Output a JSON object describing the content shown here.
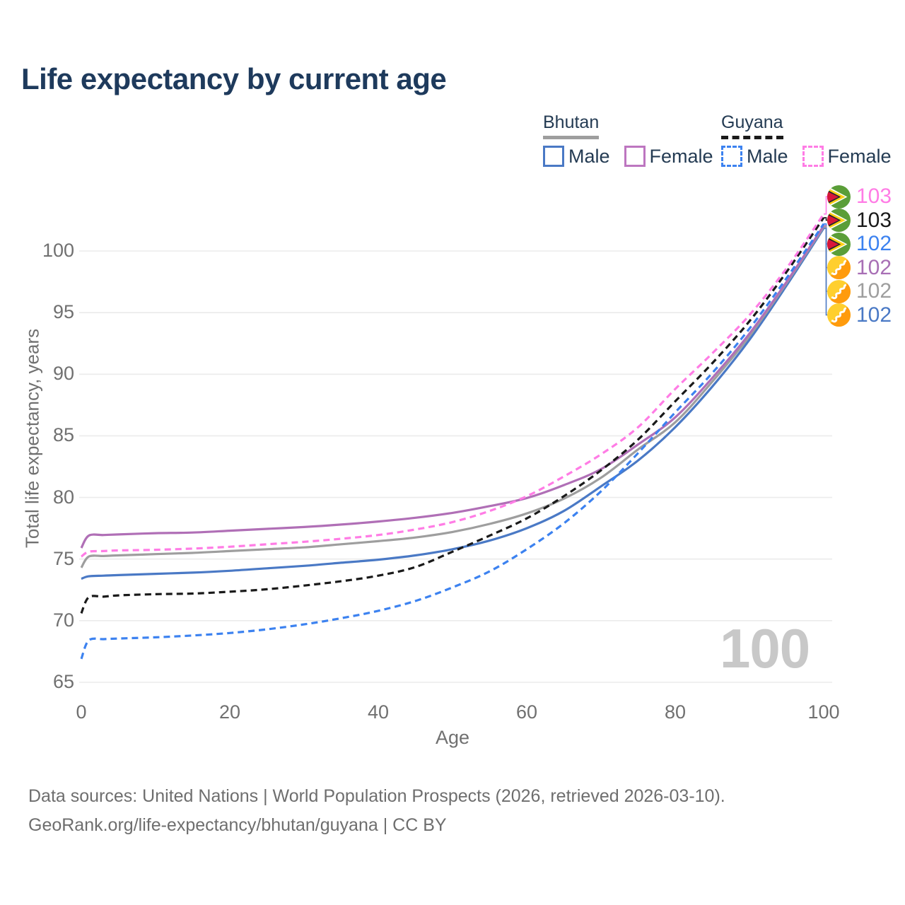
{
  "title": "Life expectancy by current age",
  "legend": {
    "groups": [
      {
        "country": "Bhutan",
        "line_style": "solid",
        "line_color": "#9e9e9e",
        "items": [
          {
            "label": "Male",
            "color": "#4a79c5",
            "style": "solid"
          },
          {
            "label": "Female",
            "color": "#bd76c0",
            "style": "solid"
          }
        ]
      },
      {
        "country": "Guyana",
        "line_style": "dashed",
        "line_color": "#1a1a1a",
        "items": [
          {
            "label": "Male",
            "color": "#3c82f0",
            "style": "dashed"
          },
          {
            "label": "Female",
            "color": "#ff7ce5",
            "style": "dashed"
          }
        ]
      }
    ]
  },
  "watermark": "100",
  "footer": {
    "line1": "Data sources: United Nations | World Population Prospects (2026, retrieved 2026-03-10).",
    "line2": "GeoRank.org/life-expectancy/bhutan/guyana | CC BY"
  },
  "chart_data": {
    "type": "line",
    "title": "Life expectancy by current age",
    "xlabel": "Age",
    "ylabel": "Total life expectancy, years",
    "xlim": [
      0,
      100
    ],
    "ylim": [
      65,
      100
    ],
    "x_ticks": [
      0,
      20,
      40,
      60,
      80,
      100
    ],
    "y_ticks": [
      65,
      70,
      75,
      80,
      85,
      90,
      95,
      100
    ],
    "grid": "horizontal-only",
    "legend_position": "top-right",
    "x": [
      0,
      1,
      3,
      5,
      10,
      15,
      20,
      25,
      30,
      35,
      40,
      45,
      50,
      55,
      60,
      65,
      70,
      75,
      80,
      85,
      90,
      95,
      100
    ],
    "series": [
      {
        "id": "bhutan_male",
        "name": "Bhutan Male",
        "color": "#4a79c5",
        "style": "solid",
        "values": [
          73.4,
          73.6,
          73.65,
          73.7,
          73.8,
          73.9,
          74.05,
          74.25,
          74.45,
          74.7,
          74.95,
          75.3,
          75.8,
          76.5,
          77.5,
          78.9,
          80.9,
          83.0,
          85.7,
          89.0,
          92.8,
          97.2,
          101.85
        ]
      },
      {
        "id": "bhutan_total",
        "name": "Bhutan Both sexes",
        "color": "#9e9e9e",
        "style": "solid",
        "values": [
          74.3,
          75.2,
          75.25,
          75.3,
          75.4,
          75.5,
          75.65,
          75.8,
          75.95,
          76.2,
          76.45,
          76.75,
          77.2,
          77.85,
          78.7,
          79.9,
          81.6,
          83.9,
          86.1,
          89.4,
          93.1,
          97.4,
          101.95
        ]
      },
      {
        "id": "bhutan_female",
        "name": "Bhutan Female",
        "color": "#b06fb6",
        "style": "solid",
        "values": [
          75.9,
          76.9,
          76.95,
          77.0,
          77.1,
          77.15,
          77.3,
          77.45,
          77.6,
          77.8,
          78.05,
          78.35,
          78.75,
          79.3,
          79.95,
          81.0,
          82.3,
          84.3,
          86.5,
          89.7,
          93.3,
          97.5,
          102.05
        ]
      },
      {
        "id": "guyana_male",
        "name": "Guyana Male",
        "color": "#3c82f0",
        "style": "dashed",
        "values": [
          66.9,
          68.4,
          68.5,
          68.55,
          68.65,
          68.8,
          69.0,
          69.3,
          69.7,
          70.2,
          70.8,
          71.6,
          72.7,
          74.0,
          75.8,
          77.9,
          80.5,
          83.6,
          86.9,
          90.1,
          93.7,
          97.8,
          102.2
        ]
      },
      {
        "id": "guyana_total",
        "name": "Guyana Both sexes",
        "color": "#1a1a1a",
        "style": "dashed",
        "values": [
          70.6,
          71.9,
          71.95,
          72.05,
          72.15,
          72.2,
          72.35,
          72.55,
          72.85,
          73.2,
          73.65,
          74.35,
          75.6,
          76.9,
          78.3,
          80.1,
          82.2,
          84.7,
          87.8,
          90.9,
          94.3,
          98.3,
          102.7
        ]
      },
      {
        "id": "guyana_female",
        "name": "Guyana Female",
        "color": "#ff7ce5",
        "style": "dashed",
        "values": [
          75.2,
          75.6,
          75.65,
          75.7,
          75.75,
          75.85,
          76.0,
          76.2,
          76.4,
          76.65,
          76.95,
          77.4,
          78.0,
          78.9,
          80.1,
          81.7,
          83.5,
          85.7,
          88.8,
          91.7,
          94.8,
          98.6,
          103.0
        ]
      }
    ],
    "end_labels": [
      {
        "value": "103",
        "color": "#ff7ce5",
        "flag": "guyana",
        "series": "guyana_female"
      },
      {
        "value": "103",
        "color": "#1a1a1a",
        "flag": "guyana",
        "series": "guyana_total"
      },
      {
        "value": "102",
        "color": "#3c82f0",
        "flag": "guyana",
        "series": "guyana_male"
      },
      {
        "value": "102",
        "color": "#a86fb5",
        "flag": "bhutan",
        "series": "bhutan_female"
      },
      {
        "value": "102",
        "color": "#9e9e9e",
        "flag": "bhutan",
        "series": "bhutan_total"
      },
      {
        "value": "102",
        "color": "#4a79c5",
        "flag": "bhutan",
        "series": "bhutan_male"
      }
    ]
  }
}
